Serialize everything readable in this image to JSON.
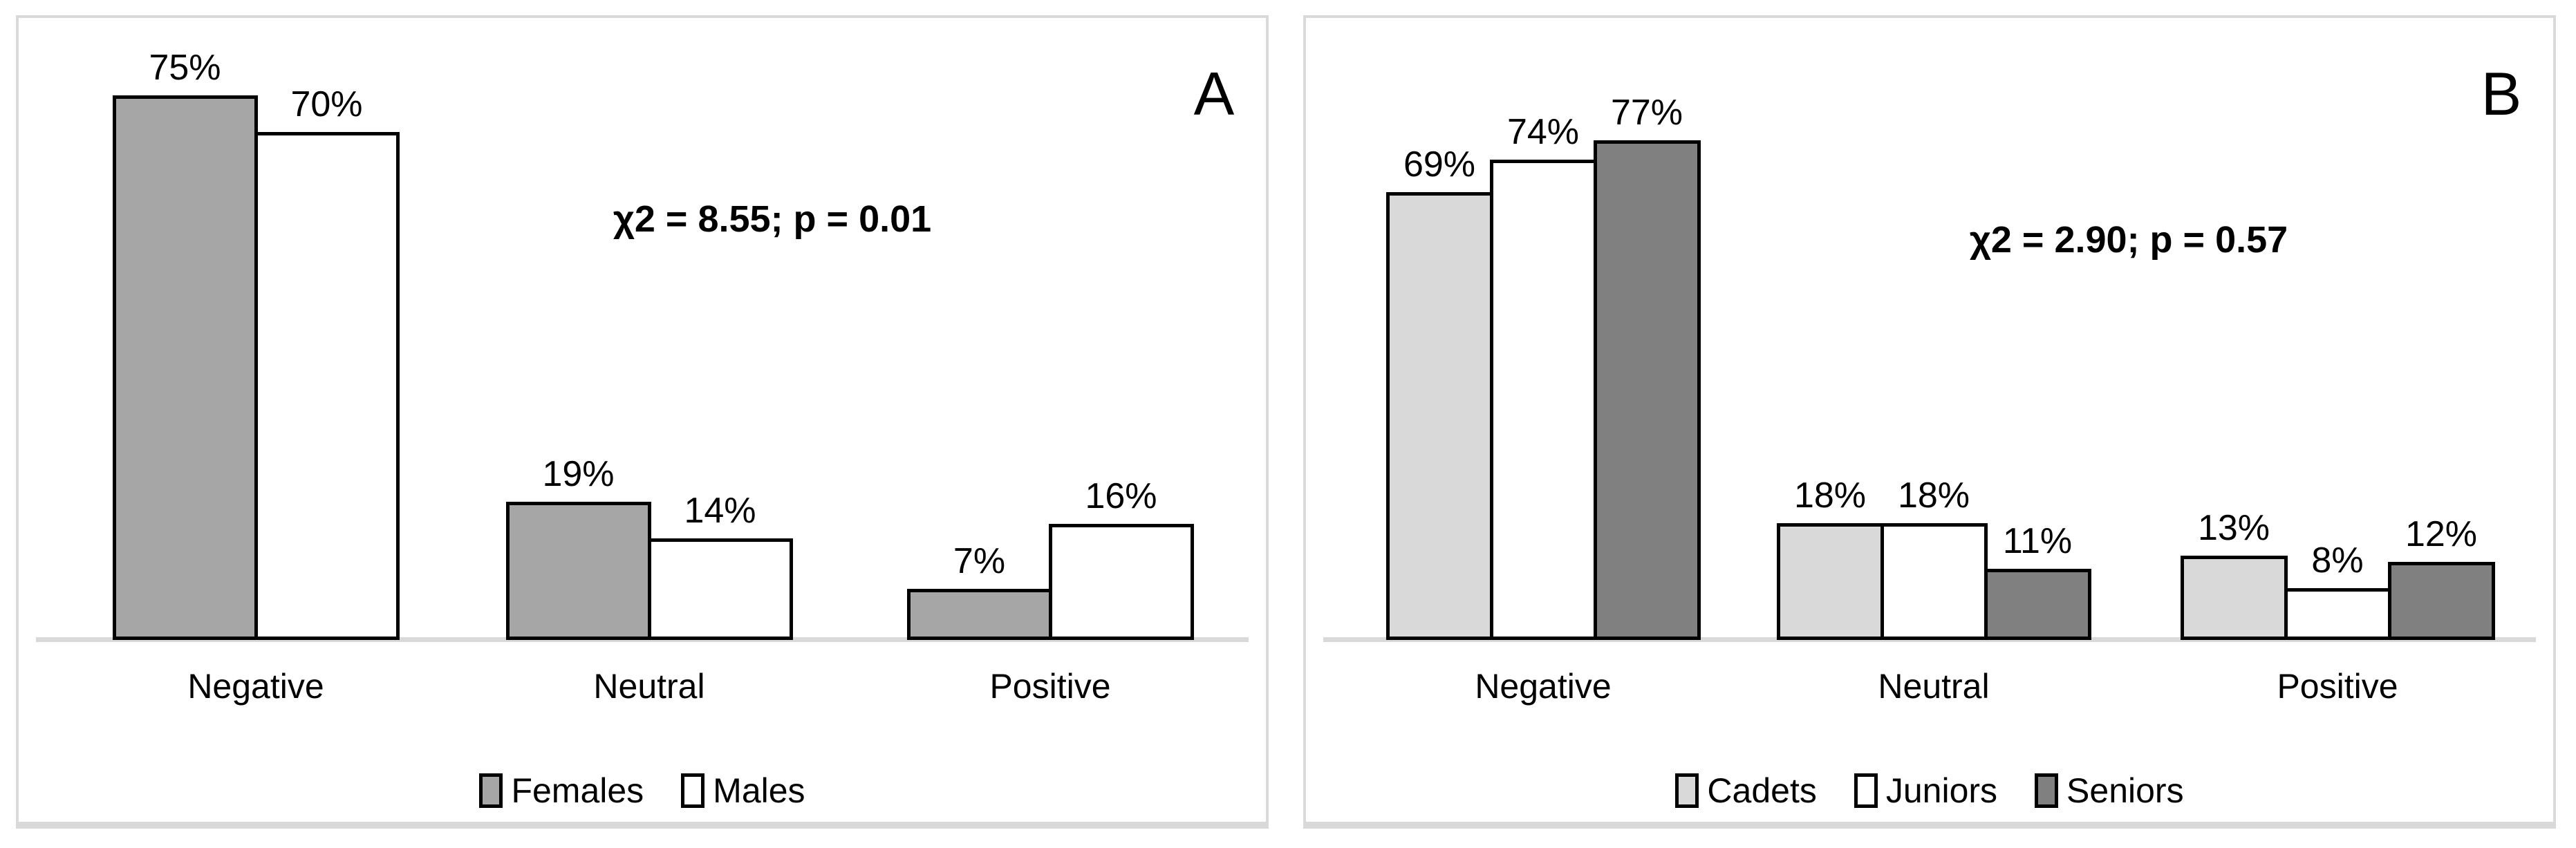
{
  "colors": {
    "text": "#000000",
    "bar_border": "#000000",
    "axis_line": "#d9d9d9",
    "panel_border": "#d9d9d9",
    "panel_background": "#ffffff",
    "females_fill": "#a6a6a6",
    "males_fill": "#ffffff",
    "cadets_fill": "#d9d9d9",
    "juniors_fill": "#ffffff",
    "seniors_fill": "#808080"
  },
  "chart_data": [
    {
      "type": "bar",
      "panel_label": "A",
      "annotation": "χ2 = 8.55; p = 0.01",
      "categories": [
        "Negative",
        "Neutral",
        "Positive"
      ],
      "series": [
        {
          "name": "Females",
          "fill": "#a6a6a6",
          "values": [
            75,
            19,
            7
          ]
        },
        {
          "name": "Males",
          "fill": "#ffffff",
          "values": [
            70,
            14,
            16
          ]
        }
      ],
      "value_suffix": "%",
      "ylabel": "",
      "xlabel": "",
      "ylim": [
        0,
        80
      ],
      "grid": false,
      "legend_position": "bottom"
    },
    {
      "type": "bar",
      "panel_label": "B",
      "annotation": "χ2 = 2.90; p = 0.57",
      "categories": [
        "Negative",
        "Neutral",
        "Positive"
      ],
      "series": [
        {
          "name": "Cadets",
          "fill": "#d9d9d9",
          "values": [
            69,
            18,
            13
          ]
        },
        {
          "name": "Juniors",
          "fill": "#ffffff",
          "values": [
            74,
            18,
            8
          ]
        },
        {
          "name": "Seniors",
          "fill": "#808080",
          "values": [
            77,
            11,
            12
          ]
        }
      ],
      "value_suffix": "%",
      "ylabel": "",
      "xlabel": "",
      "ylim": [
        0,
        90
      ],
      "grid": false,
      "legend_position": "bottom"
    }
  ]
}
